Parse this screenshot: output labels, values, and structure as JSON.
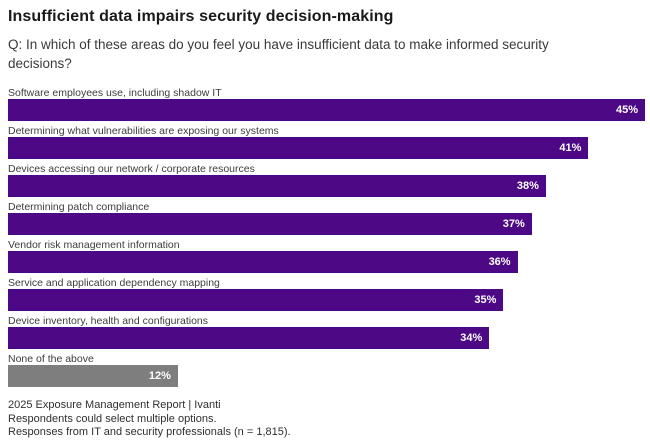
{
  "header": {
    "title": "Insufficient data impairs security decision-making",
    "question": "Q: In which of these areas do you feel you have insufficient data to make informed security decisions?"
  },
  "chart_data": {
    "type": "bar",
    "orientation": "horizontal",
    "title": "Insufficient data impairs security decision-making",
    "subtitle": "Q: In which of these areas do you feel you have insufficient data to make informed security decisions?",
    "categories": [
      "Software employees use, including shadow IT",
      "Determining what vulnerabilities are exposing our systems",
      "Devices accessing our network / corporate resources",
      "Determining patch compliance",
      "Vendor risk management information",
      "Service and application dependency mapping",
      "Device inventory, health and configurations",
      "None of the above"
    ],
    "values": [
      45,
      41,
      38,
      37,
      36,
      35,
      34,
      12
    ],
    "value_suffix": "%",
    "axis_max": 45,
    "xlim": [
      0,
      45
    ],
    "grid": false,
    "legend": false,
    "value_labels_inside_bar": true,
    "bar_colors": [
      "#4C0885",
      "#4C0885",
      "#4C0885",
      "#4C0885",
      "#4C0885",
      "#4C0885",
      "#4C0885",
      "#7E7E7E"
    ],
    "value_label_color": "#FFFFFF"
  },
  "footer": {
    "source": "2025 Exposure Management Report | Ivanti",
    "note1": "Respondents could select multiple options.",
    "note2": "Responses from IT and security professionals (n = 1,815)."
  },
  "colors": {
    "bar_purple": "#4C0885",
    "bar_gray": "#7E7E7E",
    "background": "#FFFFFF",
    "title_text": "#1A1A1A",
    "body_text": "#3C3C3C"
  }
}
